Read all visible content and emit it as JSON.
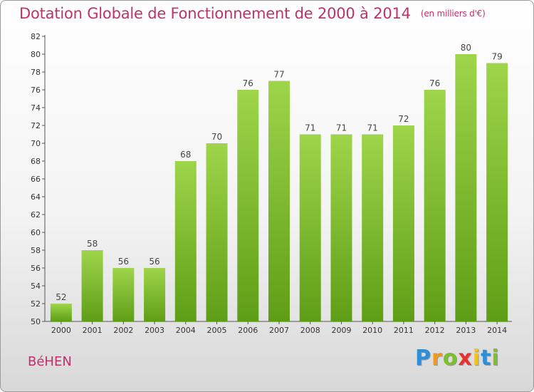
{
  "chart_data": {
    "type": "bar",
    "title": "Dotation Globale de Fonctionnement de 2000 à 2014",
    "subtitle": "(en milliers d'€)",
    "categories": [
      "2000",
      "2001",
      "2002",
      "2003",
      "2004",
      "2005",
      "2006",
      "2007",
      "2008",
      "2009",
      "2010",
      "2011",
      "2012",
      "2013",
      "2014"
    ],
    "values": [
      52,
      58,
      56,
      56,
      68,
      70,
      76,
      77,
      71,
      71,
      71,
      72,
      76,
      80,
      79
    ],
    "xlabel": "",
    "ylabel": "",
    "ylim": [
      50,
      82
    ],
    "yticks": [
      50,
      52,
      54,
      56,
      58,
      60,
      62,
      64,
      66,
      68,
      70,
      72,
      74,
      76,
      78,
      80,
      82
    ],
    "grid": false,
    "bar_color": "#7cc12c"
  },
  "location": "BéHEN",
  "logo": {
    "letters": [
      "P",
      "r",
      "o",
      "x",
      "i",
      "t",
      "i"
    ],
    "colors": [
      "#2e8fd8",
      "#f39a1e",
      "#7cbf2f",
      "#e8322e",
      "#f3c21e",
      "#2e8fd8",
      "#7cbf2f"
    ]
  }
}
